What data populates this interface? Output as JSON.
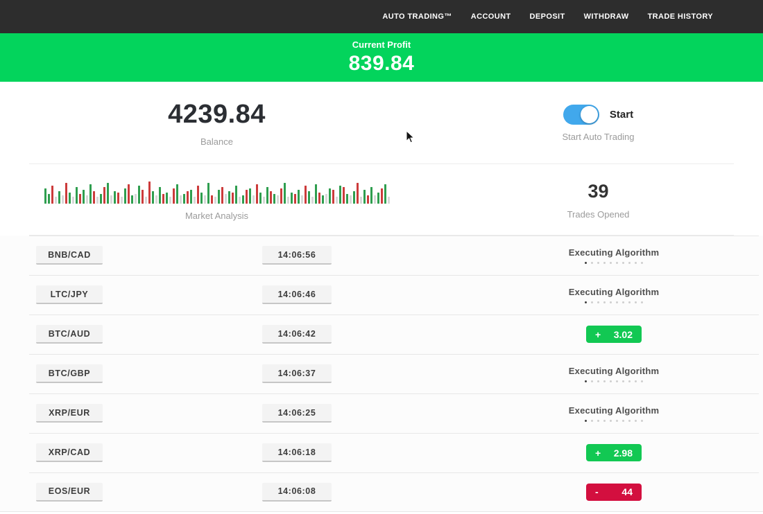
{
  "navbar": {
    "items": [
      "AUTO TRADING™",
      "ACCOUNT",
      "DEPOSIT",
      "WITHDRAW",
      "TRADE HISTORY"
    ]
  },
  "profit_banner": {
    "label": "Current Profit",
    "value": "839.84",
    "color": "#03d45c"
  },
  "stats": {
    "balance_value": "4239.84",
    "balance_label": "Balance",
    "toggle_label": "Start",
    "toggle_caption": "Start Auto Trading",
    "toggle_state": "on",
    "toggle_color": "#41a8ec",
    "market_label": "Market Analysis",
    "trades_value": "39",
    "trades_label": "Trades Opened"
  },
  "chart_data": {
    "type": "bar",
    "title": "Market Analysis",
    "xlabel": "",
    "ylabel": "",
    "legend": "none",
    "colors": {
      "g": "#2f9e4f",
      "r": "#cc3b3b",
      "x": "#d8d8d8"
    },
    "bars": [
      [
        "g",
        22
      ],
      [
        "g",
        14
      ],
      [
        "r",
        26
      ],
      [
        "x",
        10
      ],
      [
        "g",
        18
      ],
      [
        "x",
        12
      ],
      [
        "r",
        30
      ],
      [
        "g",
        16
      ],
      [
        "x",
        10
      ],
      [
        "g",
        24
      ],
      [
        "r",
        14
      ],
      [
        "g",
        20
      ],
      [
        "x",
        12
      ],
      [
        "g",
        28
      ],
      [
        "r",
        18
      ],
      [
        "x",
        10
      ],
      [
        "g",
        14
      ],
      [
        "r",
        24
      ],
      [
        "g",
        30
      ],
      [
        "x",
        12
      ],
      [
        "g",
        18
      ],
      [
        "r",
        16
      ],
      [
        "x",
        10
      ],
      [
        "g",
        22
      ],
      [
        "r",
        28
      ],
      [
        "g",
        12
      ],
      [
        "x",
        14
      ],
      [
        "g",
        26
      ],
      [
        "r",
        20
      ],
      [
        "x",
        10
      ],
      [
        "r",
        32
      ],
      [
        "g",
        18
      ],
      [
        "x",
        12
      ],
      [
        "g",
        24
      ],
      [
        "r",
        14
      ],
      [
        "g",
        16
      ],
      [
        "x",
        10
      ],
      [
        "r",
        22
      ],
      [
        "g",
        28
      ],
      [
        "x",
        12
      ],
      [
        "g",
        14
      ],
      [
        "r",
        18
      ],
      [
        "g",
        20
      ],
      [
        "x",
        10
      ],
      [
        "r",
        26
      ],
      [
        "g",
        16
      ],
      [
        "x",
        12
      ],
      [
        "g",
        30
      ],
      [
        "r",
        12
      ],
      [
        "x",
        10
      ],
      [
        "g",
        20
      ],
      [
        "r",
        24
      ],
      [
        "x",
        14
      ],
      [
        "g",
        18
      ],
      [
        "r",
        16
      ],
      [
        "g",
        26
      ],
      [
        "x",
        10
      ],
      [
        "g",
        12
      ],
      [
        "r",
        20
      ],
      [
        "g",
        22
      ],
      [
        "x",
        12
      ],
      [
        "r",
        28
      ],
      [
        "g",
        16
      ],
      [
        "x",
        10
      ],
      [
        "g",
        24
      ],
      [
        "r",
        18
      ],
      [
        "g",
        14
      ],
      [
        "x",
        12
      ],
      [
        "r",
        22
      ],
      [
        "g",
        30
      ],
      [
        "x",
        10
      ],
      [
        "g",
        16
      ],
      [
        "r",
        14
      ],
      [
        "g",
        20
      ],
      [
        "x",
        12
      ],
      [
        "r",
        26
      ],
      [
        "g",
        18
      ],
      [
        "x",
        10
      ],
      [
        "g",
        28
      ],
      [
        "r",
        16
      ],
      [
        "g",
        12
      ],
      [
        "x",
        14
      ],
      [
        "g",
        22
      ],
      [
        "r",
        20
      ],
      [
        "x",
        10
      ],
      [
        "g",
        26
      ],
      [
        "r",
        24
      ],
      [
        "g",
        14
      ],
      [
        "x",
        12
      ],
      [
        "g",
        18
      ],
      [
        "r",
        30
      ],
      [
        "x",
        10
      ],
      [
        "g",
        20
      ],
      [
        "r",
        12
      ],
      [
        "g",
        24
      ],
      [
        "x",
        12
      ],
      [
        "g",
        16
      ],
      [
        "r",
        22
      ],
      [
        "g",
        28
      ],
      [
        "x",
        10
      ]
    ]
  },
  "executing": {
    "label": "Executing Algorithm",
    "dots": 10
  },
  "trades": [
    {
      "pair": "BNB/CAD",
      "time": "14:06:56",
      "status": "executing"
    },
    {
      "pair": "LTC/JPY",
      "time": "14:06:46",
      "status": "executing"
    },
    {
      "pair": "BTC/AUD",
      "time": "14:06:42",
      "status": "win",
      "sign": "+",
      "amount": "3.02"
    },
    {
      "pair": "BTC/GBP",
      "time": "14:06:37",
      "status": "executing"
    },
    {
      "pair": "XRP/EUR",
      "time": "14:06:25",
      "status": "executing"
    },
    {
      "pair": "XRP/CAD",
      "time": "14:06:18",
      "status": "win",
      "sign": "+",
      "amount": "2.98"
    },
    {
      "pair": "EOS/EUR",
      "time": "14:06:08",
      "status": "loss",
      "sign": "-",
      "amount": "44"
    }
  ],
  "colors": {
    "navbar_bg": "#2d2d2d",
    "banner_green": "#03d45c",
    "badge_green": "#12c853",
    "badge_red": "#d30f3f",
    "toggle_blue": "#41a8ec"
  }
}
